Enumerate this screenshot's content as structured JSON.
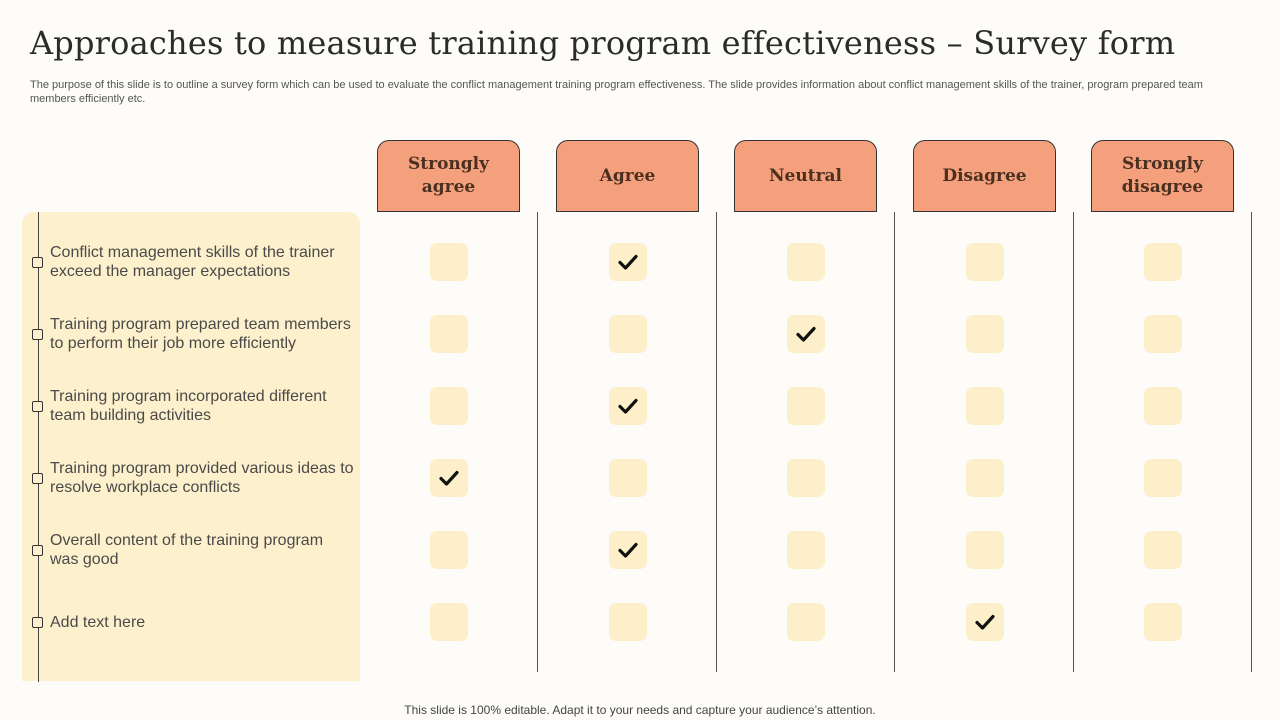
{
  "title": "Approaches to measure training program effectiveness – Survey form",
  "description": "The purpose of this slide is to outline a survey form which can be used to evaluate the conflict management training program effectiveness. The slide provides information about conflict management skills of the trainer, program prepared team members efficiently etc.",
  "columns": [
    "Strongly agree",
    "Agree",
    "Neutral",
    "Disagree",
    "Strongly disagree"
  ],
  "questions": [
    {
      "text": "Conflict management skills of the trainer exceed the manager expectations",
      "answer": "Agree"
    },
    {
      "text": "Training program prepared team members to perform their job more efficiently",
      "answer": "Neutral"
    },
    {
      "text": "Training program incorporated different team building activities",
      "answer": "Agree"
    },
    {
      "text": "Training program provided various ideas to resolve workplace conflicts",
      "answer": "Strongly agree"
    },
    {
      "text": "Overall content of the training program was good",
      "answer": "Agree"
    },
    {
      "text": "Add text here",
      "answer": "Disagree"
    }
  ],
  "footer": "This slide is 100% editable. Adapt it to your needs and capture your audience’s attention.",
  "colors": {
    "header": "#f5a07c",
    "panel": "#fdf0cc",
    "checkbox": "#fdefc9"
  },
  "icons": {
    "check": "checkmark-icon",
    "bullet": "square-bullet-icon"
  }
}
